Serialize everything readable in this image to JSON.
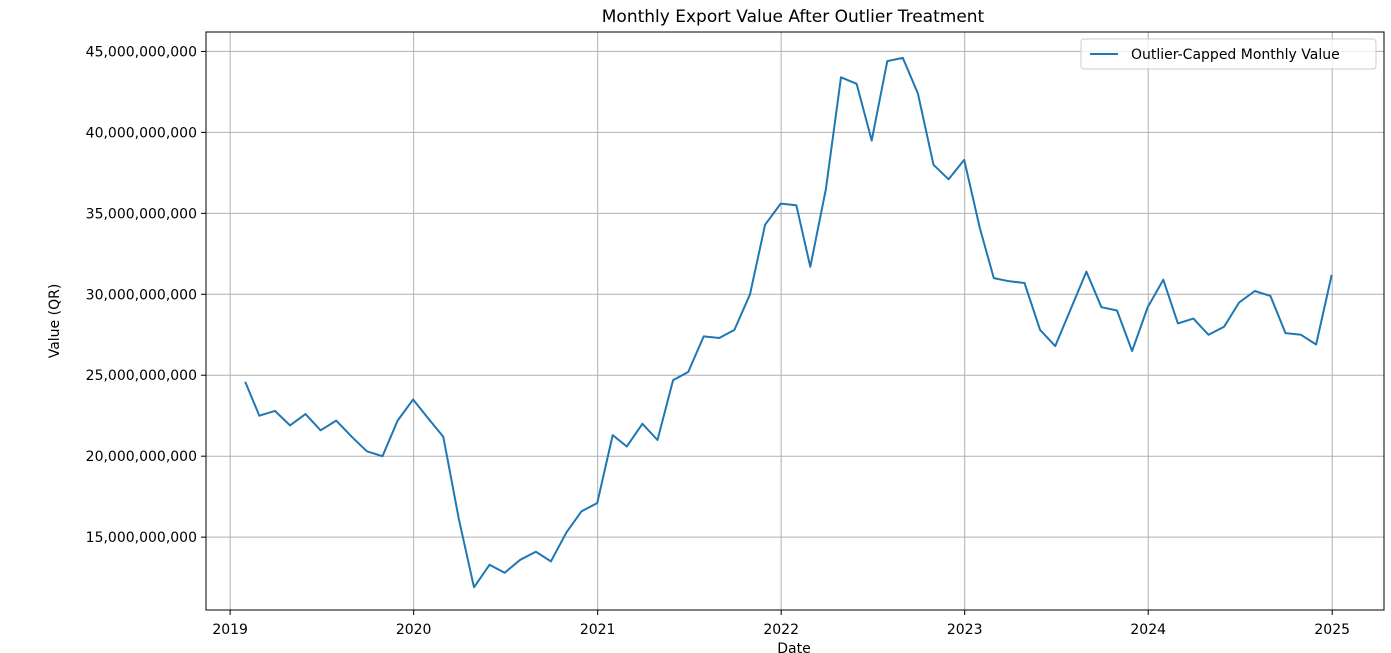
{
  "chart_data": {
    "type": "line",
    "title": "Monthly Export Value After Outlier Treatment",
    "xlabel": "Date",
    "ylabel": "Value (QR)",
    "xlim": [
      "2018-11-14",
      "2025-04-14"
    ],
    "ylim": [
      10500000000,
      46200000000
    ],
    "grid": true,
    "legend_position": "top-right",
    "x_ticks": [
      "2019-01-01",
      "2020-01-01",
      "2021-01-01",
      "2022-01-01",
      "2023-01-01",
      "2024-01-01",
      "2025-01-01"
    ],
    "x_tick_labels": [
      "2019",
      "2020",
      "2021",
      "2022",
      "2023",
      "2024",
      "2025"
    ],
    "y_ticks": [
      15000000000,
      20000000000,
      25000000000,
      30000000000,
      35000000000,
      40000000000,
      45000000000
    ],
    "y_tick_labels": [
      "15,000,000,000",
      "20,000,000,000",
      "25,000,000,000",
      "30,000,000,000",
      "35,000,000,000",
      "40,000,000,000",
      "45,000,000,000"
    ],
    "colors": {
      "series": "#1f77b4",
      "grid": "#b0b0b0",
      "axis": "#000000"
    },
    "series": [
      {
        "name": "Outlier-Capped Monthly Value",
        "x": [
          "2019-01-31",
          "2019-02-28",
          "2019-03-31",
          "2019-04-30",
          "2019-05-31",
          "2019-06-30",
          "2019-07-31",
          "2019-08-31",
          "2019-09-30",
          "2019-10-31",
          "2019-11-30",
          "2019-12-31",
          "2020-01-31",
          "2020-02-29",
          "2020-03-31",
          "2020-04-30",
          "2020-05-31",
          "2020-06-30",
          "2020-07-31",
          "2020-08-31",
          "2020-09-30",
          "2020-10-31",
          "2020-11-30",
          "2020-12-31",
          "2021-01-31",
          "2021-02-28",
          "2021-03-31",
          "2021-04-30",
          "2021-05-31",
          "2021-06-30",
          "2021-07-31",
          "2021-08-31",
          "2021-09-30",
          "2021-10-31",
          "2021-11-30",
          "2021-12-31",
          "2022-01-31",
          "2022-02-28",
          "2022-03-31",
          "2022-04-30",
          "2022-05-31",
          "2022-06-30",
          "2022-07-31",
          "2022-08-31",
          "2022-09-30",
          "2022-10-31",
          "2022-11-30",
          "2022-12-31",
          "2023-01-31",
          "2023-02-28",
          "2023-03-31",
          "2023-04-30",
          "2023-05-31",
          "2023-06-30",
          "2023-07-31",
          "2023-08-31",
          "2023-09-30",
          "2023-10-31",
          "2023-11-30",
          "2023-12-31",
          "2024-01-31",
          "2024-02-29",
          "2024-03-31",
          "2024-04-30",
          "2024-05-31",
          "2024-06-30",
          "2024-07-31",
          "2024-08-31",
          "2024-09-30",
          "2024-10-31",
          "2024-11-30",
          "2024-12-31"
        ],
        "values": [
          24600000000,
          22500000000,
          22800000000,
          21900000000,
          22600000000,
          21600000000,
          22200000000,
          21200000000,
          20300000000,
          20000000000,
          22200000000,
          23500000000,
          22300000000,
          21200000000,
          16100000000,
          11900000000,
          13300000000,
          12800000000,
          13600000000,
          14100000000,
          13500000000,
          15300000000,
          16600000000,
          17100000000,
          21300000000,
          20600000000,
          22000000000,
          21000000000,
          24700000000,
          25200000000,
          27400000000,
          27300000000,
          27800000000,
          30000000000,
          34300000000,
          35600000000,
          35500000000,
          31700000000,
          36500000000,
          43400000000,
          43000000000,
          39500000000,
          44400000000,
          44600000000,
          42400000000,
          38000000000,
          37100000000,
          38300000000,
          34100000000,
          31000000000,
          30800000000,
          30700000000,
          27800000000,
          26800000000,
          29100000000,
          31400000000,
          29200000000,
          29000000000,
          26500000000,
          29200000000,
          30900000000,
          28200000000,
          28500000000,
          27500000000,
          28000000000,
          29500000000,
          30200000000,
          29900000000,
          27600000000,
          27500000000,
          26900000000,
          31200000000
        ]
      }
    ]
  }
}
